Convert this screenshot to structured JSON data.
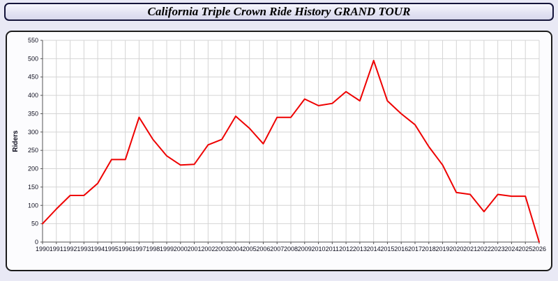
{
  "header": {
    "title": "California Triple Crown Ride History GRAND TOUR"
  },
  "colors": {
    "page_background": "#e9e9f5",
    "panel_border": "#1c1c1c",
    "titlebar_border": "#14143a",
    "plot_background": "#ffffff",
    "gridline": "#d4d4d4",
    "axis": "#555555",
    "line": "#ee0000",
    "tick_text": "#101020"
  },
  "chart_data": {
    "type": "line",
    "title": "California Triple Crown Ride History GRAND TOUR",
    "xlabel": "",
    "ylabel": "Riders",
    "ylim": [
      0,
      550
    ],
    "ytick_step": 50,
    "grid": true,
    "legend": "none",
    "line_color": "#ee0000",
    "x": [
      1990,
      1991,
      1992,
      1993,
      1994,
      1995,
      1996,
      1997,
      1998,
      1999,
      2000,
      2001,
      2002,
      2003,
      2004,
      2005,
      2006,
      2007,
      2008,
      2009,
      2010,
      2011,
      2012,
      2013,
      2014,
      2015,
      2016,
      2017,
      2018,
      2019,
      2020,
      2021,
      2022,
      2023,
      2024,
      2025,
      2026
    ],
    "values": [
      50,
      90,
      127,
      127,
      160,
      225,
      225,
      340,
      280,
      235,
      210,
      212,
      265,
      280,
      343,
      310,
      268,
      340,
      340,
      390,
      372,
      378,
      410,
      385,
      495,
      385,
      350,
      320,
      260,
      210,
      135,
      130,
      83,
      130,
      125,
      125,
      0
    ]
  }
}
